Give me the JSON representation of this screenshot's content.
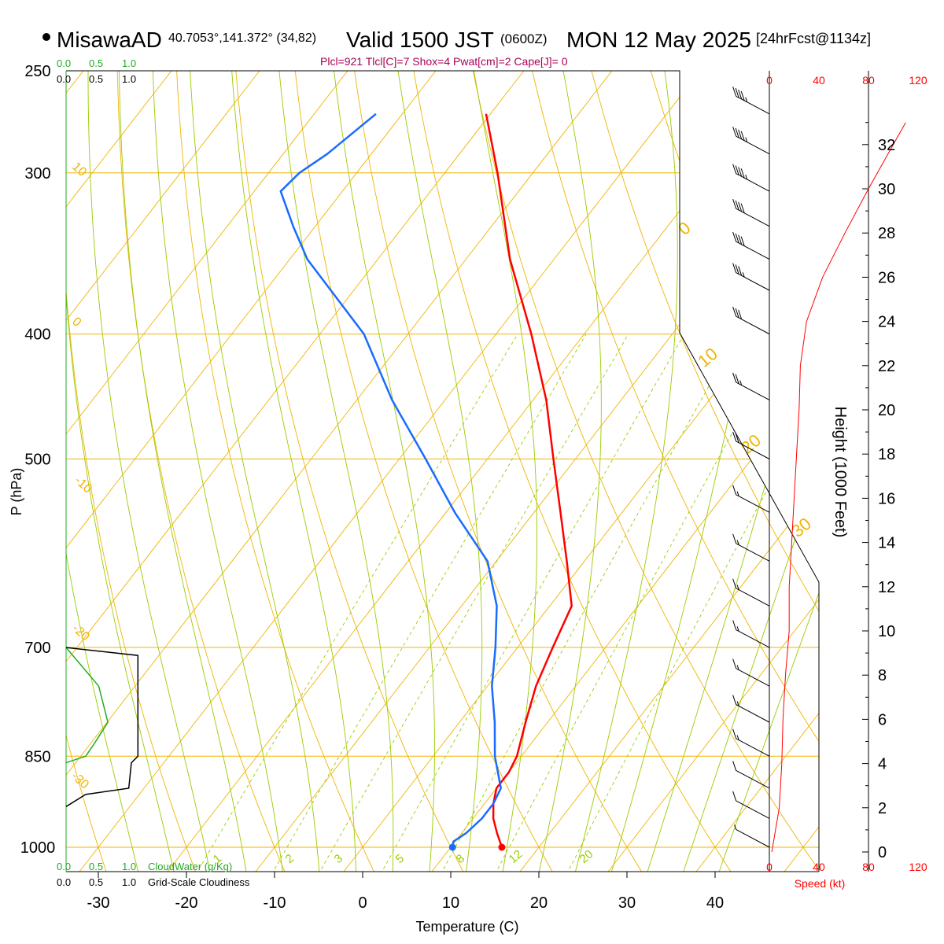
{
  "header": {
    "station": "MisawaAD",
    "coords": "40.7053°,141.372° (34,82)",
    "valid": "Valid 1500 JST",
    "zulu": "(0600Z)",
    "date": "MON 12 May 2025",
    "forecast": "[24hrFcst@1134z]",
    "indices": "Plcl=921 Tlcl[C]=7 Shox=4 Pwat[cm]=2 Cape[J]= 0"
  },
  "colors": {
    "temperature": "#ff0000",
    "dewpoint": "#1a6bff",
    "isotherm": "#f0b400",
    "dry_adiabat": "#f0b400",
    "moist_adiabat": "#99cc00",
    "mixing_ratio": "#99cc00",
    "cloud_water": "#22aa22",
    "cloudiness": "#000000",
    "height_curve": "#ff0000",
    "indices": "#aa0055"
  },
  "chart_data": {
    "type": "skew-t",
    "xlabel": "Temperature (C)",
    "ylabel": "P (hPa)",
    "right_axis_label": "Height (1000 Feet)",
    "x_ticks": [
      -30,
      -20,
      -10,
      0,
      10,
      20,
      30,
      40
    ],
    "pressure_levels": [
      250,
      300,
      400,
      500,
      700,
      850,
      1000
    ],
    "height_ticks": [
      0,
      2,
      4,
      6,
      8,
      10,
      12,
      14,
      16,
      18,
      20,
      22,
      24,
      26,
      28,
      30,
      32
    ],
    "speed_axis": {
      "label": "Speed (kt)",
      "ticks": [
        0,
        40,
        80,
        120
      ]
    },
    "top_scale_1": [
      "0.0",
      "0.5",
      "1.0"
    ],
    "top_scale_2": [
      "0.0",
      "0.5",
      "1.0"
    ],
    "bottom_scale_1": [
      "0.0",
      "0.5",
      "1.0"
    ],
    "bottom_scale_2": [
      "0.0",
      "0.5",
      "1.0"
    ],
    "cloud_water_label": "CloudWater (g/Kg)",
    "cloudiness_label": "Grid-Scale Cloudiness",
    "isotherm_labels": [
      "10",
      "0",
      "-10",
      "-20",
      "-30"
    ],
    "dry_adiabat_labels": [
      "0",
      "10",
      "20",
      "30"
    ],
    "mixing_ratio_labels": [
      "1",
      "2",
      "3",
      "5",
      "8",
      "12",
      "20"
    ],
    "temperature_profile": {
      "name": "Temperature",
      "points": [
        [
          1000,
          15.8
        ],
        [
          975,
          14.0
        ],
        [
          950,
          12.3
        ],
        [
          925,
          11.0
        ],
        [
          900,
          10.0
        ],
        [
          875,
          10.0
        ],
        [
          850,
          9.5
        ],
        [
          800,
          7.5
        ],
        [
          750,
          5.5
        ],
        [
          700,
          4.0
        ],
        [
          650,
          2.5
        ],
        [
          600,
          -2.0
        ],
        [
          550,
          -7.0
        ],
        [
          500,
          -12.5
        ],
        [
          450,
          -18.5
        ],
        [
          400,
          -26.0
        ],
        [
          350,
          -35.0
        ],
        [
          300,
          -44.0
        ],
        [
          270,
          -50.5
        ]
      ]
    },
    "dewpoint_profile": {
      "name": "Dewpoint",
      "points": [
        [
          1000,
          10.2
        ],
        [
          990,
          9.8
        ],
        [
          975,
          10.5
        ],
        [
          950,
          11.0
        ],
        [
          925,
          11.0
        ],
        [
          900,
          10.5
        ],
        [
          850,
          7.0
        ],
        [
          800,
          4.0
        ],
        [
          750,
          0.5
        ],
        [
          700,
          -2.5
        ],
        [
          650,
          -6.0
        ],
        [
          600,
          -11.0
        ],
        [
          550,
          -19.0
        ],
        [
          500,
          -27.0
        ],
        [
          450,
          -36.0
        ],
        [
          400,
          -45.0
        ],
        [
          350,
          -58.0
        ],
        [
          330,
          -62.5
        ],
        [
          310,
          -67.0
        ],
        [
          300,
          -66.5
        ],
        [
          290,
          -65.0
        ],
        [
          270,
          -63.0
        ]
      ]
    },
    "height_profile_kt": {
      "name": "Wind speed",
      "points": [
        [
          0,
          2
        ],
        [
          2,
          8
        ],
        [
          4,
          10
        ],
        [
          6,
          11
        ],
        [
          8,
          13
        ],
        [
          10,
          16
        ],
        [
          12,
          16
        ],
        [
          14,
          18
        ],
        [
          16,
          20
        ],
        [
          18,
          22
        ],
        [
          20,
          24
        ],
        [
          22,
          25
        ],
        [
          24,
          30
        ],
        [
          26,
          43
        ],
        [
          28,
          61
        ],
        [
          30,
          80
        ],
        [
          32,
          100
        ],
        [
          33,
          110
        ]
      ]
    },
    "cloud_water": [
      [
        700,
        0.0
      ],
      [
        750,
        0.25
      ],
      [
        800,
        0.32
      ],
      [
        830,
        0.22
      ],
      [
        850,
        0.15
      ],
      [
        860,
        0.0
      ]
    ],
    "cloudiness": [
      [
        700,
        0.0
      ],
      [
        710,
        0.55
      ],
      [
        850,
        0.55
      ],
      [
        860,
        0.5
      ],
      [
        900,
        0.48
      ],
      [
        910,
        0.15
      ],
      [
        930,
        0.0
      ]
    ],
    "wind_barbs_kt": [
      [
        270,
        45
      ],
      [
        290,
        45
      ],
      [
        310,
        45
      ],
      [
        330,
        40
      ],
      [
        350,
        40
      ],
      [
        370,
        35
      ],
      [
        400,
        30
      ],
      [
        450,
        25
      ],
      [
        500,
        20
      ],
      [
        550,
        15
      ],
      [
        600,
        15
      ],
      [
        650,
        15
      ],
      [
        700,
        15
      ],
      [
        750,
        15
      ],
      [
        800,
        15
      ],
      [
        850,
        15
      ],
      [
        900,
        10
      ],
      [
        950,
        10
      ],
      [
        1000,
        5
      ]
    ]
  }
}
